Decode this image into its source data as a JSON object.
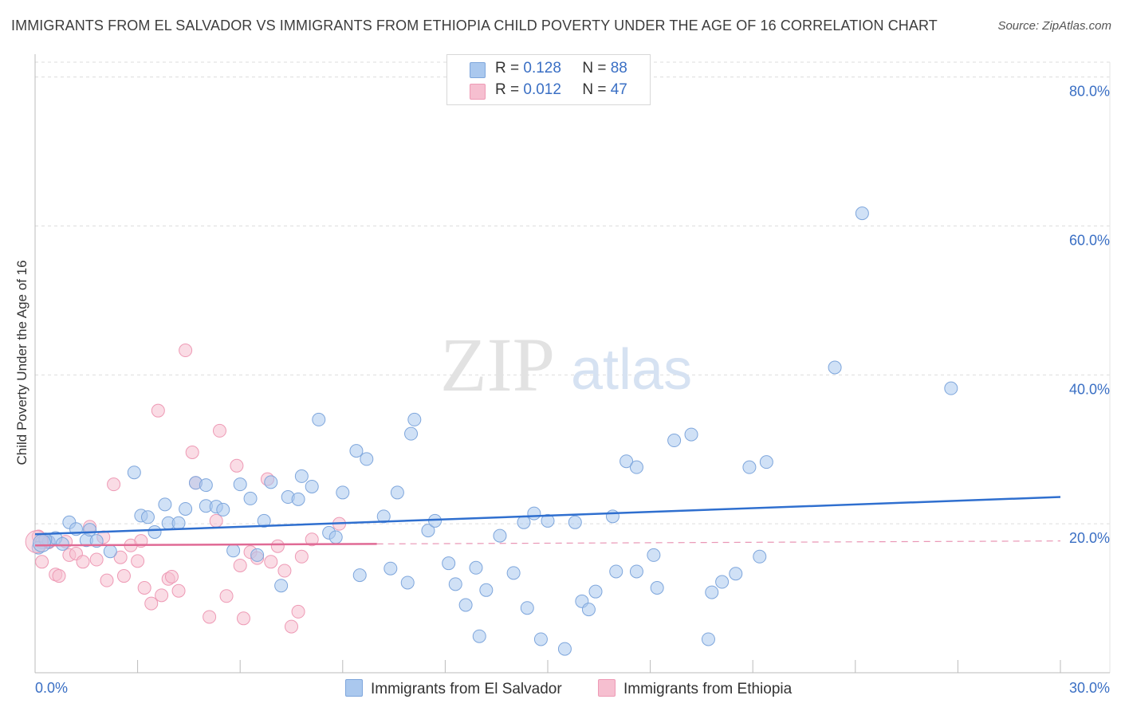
{
  "header": {
    "title": "IMMIGRANTS FROM EL SALVADOR VS IMMIGRANTS FROM ETHIOPIA CHILD POVERTY UNDER THE AGE OF 16 CORRELATION CHART",
    "source": "Source: ZipAtlas.com"
  },
  "watermark": {
    "zip": "ZIP",
    "atlas": "atlas"
  },
  "legend": {
    "rows": [
      {
        "r_label": "R =",
        "r_value": "0.128",
        "n_label": "N =",
        "n_value": "88"
      },
      {
        "r_label": "R =",
        "r_value": "0.012",
        "n_label": "N =",
        "n_value": "47"
      }
    ]
  },
  "bottom_legend": {
    "el_salvador": "Immigrants from El Salvador",
    "ethiopia": "Immigrants from Ethiopia"
  },
  "colors": {
    "el_salvador_fill": "#aac8ee",
    "el_salvador_stroke": "#7ea6dc",
    "el_salvador_line": "#2f6fcf",
    "ethiopia_fill": "#f6bfd0",
    "ethiopia_stroke": "#ee9ab5",
    "ethiopia_line": "#e06a95",
    "grid": "#dddddd",
    "tick_text": "#3a6fc4"
  },
  "chart_data": {
    "type": "scatter",
    "title": "IMMIGRANTS FROM EL SALVADOR VS IMMIGRANTS FROM ETHIOPIA CHILD POVERTY UNDER THE AGE OF 16 CORRELATION CHART",
    "xlabel": "",
    "ylabel": "Child Poverty Under the Age of 16",
    "xlim": [
      0,
      30
    ],
    "ylim": [
      0,
      82
    ],
    "x_tick_labels": [
      "0.0%",
      "30.0%"
    ],
    "y_ticks": [
      20,
      40,
      60,
      80
    ],
    "y_tick_labels": [
      "20.0%",
      "40.0%",
      "60.0%",
      "80.0%"
    ],
    "grid": true,
    "legend_position": "top-center",
    "series": [
      {
        "name": "Immigrants from El Salvador",
        "R": 0.128,
        "N": 88,
        "trend": {
          "x": [
            0,
            30
          ],
          "y": [
            18.6,
            23.6
          ]
        },
        "points": [
          [
            0.2,
            17.5
          ],
          [
            0.4,
            17.6
          ],
          [
            0.6,
            18.1
          ],
          [
            0.8,
            17.3
          ],
          [
            1.0,
            20.2
          ],
          [
            1.2,
            19.3
          ],
          [
            1.5,
            17.8
          ],
          [
            1.6,
            19.2
          ],
          [
            1.8,
            17.7
          ],
          [
            2.2,
            16.3
          ],
          [
            2.9,
            26.9
          ],
          [
            3.1,
            21.1
          ],
          [
            3.3,
            20.9
          ],
          [
            3.5,
            18.9
          ],
          [
            3.8,
            22.6
          ],
          [
            3.9,
            20.1
          ],
          [
            4.2,
            20.1
          ],
          [
            4.4,
            22.0
          ],
          [
            4.7,
            25.5
          ],
          [
            5.0,
            22.4
          ],
          [
            5.0,
            25.2
          ],
          [
            5.3,
            22.3
          ],
          [
            5.5,
            21.9
          ],
          [
            5.8,
            16.4
          ],
          [
            6.0,
            25.3
          ],
          [
            6.3,
            23.4
          ],
          [
            6.5,
            15.8
          ],
          [
            6.7,
            20.4
          ],
          [
            6.9,
            25.6
          ],
          [
            7.2,
            11.7
          ],
          [
            7.4,
            23.6
          ],
          [
            7.7,
            23.3
          ],
          [
            7.8,
            26.4
          ],
          [
            8.1,
            25.0
          ],
          [
            8.3,
            34.0
          ],
          [
            8.6,
            18.8
          ],
          [
            8.8,
            18.2
          ],
          [
            9.0,
            24.2
          ],
          [
            9.4,
            29.8
          ],
          [
            9.5,
            13.1
          ],
          [
            9.7,
            28.7
          ],
          [
            10.2,
            21.0
          ],
          [
            10.4,
            14.0
          ],
          [
            10.6,
            24.2
          ],
          [
            10.9,
            12.1
          ],
          [
            11.0,
            32.1
          ],
          [
            11.1,
            34.0
          ],
          [
            11.5,
            19.1
          ],
          [
            11.7,
            20.4
          ],
          [
            12.1,
            14.7
          ],
          [
            12.3,
            11.9
          ],
          [
            12.6,
            9.1
          ],
          [
            12.9,
            14.1
          ],
          [
            13.0,
            4.9
          ],
          [
            13.2,
            11.1
          ],
          [
            13.6,
            18.4
          ],
          [
            14.0,
            13.4
          ],
          [
            14.3,
            20.2
          ],
          [
            14.4,
            8.7
          ],
          [
            14.6,
            21.4
          ],
          [
            14.8,
            4.5
          ],
          [
            15.0,
            20.4
          ],
          [
            15.5,
            3.2
          ],
          [
            15.8,
            20.2
          ],
          [
            16.0,
            9.6
          ],
          [
            16.2,
            8.5
          ],
          [
            16.4,
            10.9
          ],
          [
            16.9,
            21.0
          ],
          [
            17.0,
            13.6
          ],
          [
            17.3,
            28.4
          ],
          [
            17.6,
            27.6
          ],
          [
            17.6,
            13.6
          ],
          [
            18.1,
            15.8
          ],
          [
            18.2,
            11.4
          ],
          [
            18.7,
            31.2
          ],
          [
            19.2,
            32.0
          ],
          [
            19.7,
            4.5
          ],
          [
            19.8,
            10.8
          ],
          [
            20.1,
            12.2
          ],
          [
            20.5,
            13.3
          ],
          [
            20.9,
            27.6
          ],
          [
            21.2,
            15.6
          ],
          [
            21.4,
            28.3
          ],
          [
            23.4,
            41.0
          ],
          [
            24.2,
            61.7
          ],
          [
            26.8,
            38.2
          ],
          [
            0.1,
            16.8
          ],
          [
            0.3,
            17.9
          ]
        ]
      },
      {
        "name": "Immigrants from Ethiopia",
        "R": 0.012,
        "N": 47,
        "trend": {
          "x": [
            0,
            10
          ],
          "y": [
            17.1,
            17.3
          ]
        },
        "points": [
          [
            0.1,
            18.3
          ],
          [
            0.2,
            14.9
          ],
          [
            0.4,
            17.5
          ],
          [
            0.6,
            13.2
          ],
          [
            0.7,
            13.0
          ],
          [
            0.9,
            17.6
          ],
          [
            1.0,
            15.8
          ],
          [
            1.2,
            16.0
          ],
          [
            1.4,
            14.9
          ],
          [
            1.6,
            19.6
          ],
          [
            1.8,
            15.2
          ],
          [
            2.0,
            18.2
          ],
          [
            2.1,
            12.4
          ],
          [
            2.3,
            25.3
          ],
          [
            2.5,
            15.5
          ],
          [
            2.6,
            13.0
          ],
          [
            2.8,
            17.1
          ],
          [
            3.0,
            15.0
          ],
          [
            3.1,
            17.7
          ],
          [
            3.2,
            11.4
          ],
          [
            3.4,
            9.3
          ],
          [
            3.6,
            35.2
          ],
          [
            3.7,
            10.4
          ],
          [
            3.9,
            12.6
          ],
          [
            4.0,
            12.9
          ],
          [
            4.2,
            11.0
          ],
          [
            4.4,
            43.3
          ],
          [
            4.6,
            29.6
          ],
          [
            4.7,
            25.5
          ],
          [
            5.1,
            7.5
          ],
          [
            5.3,
            20.4
          ],
          [
            5.4,
            32.5
          ],
          [
            5.6,
            10.3
          ],
          [
            5.9,
            27.8
          ],
          [
            6.0,
            14.4
          ],
          [
            6.1,
            7.3
          ],
          [
            6.3,
            16.2
          ],
          [
            6.5,
            15.4
          ],
          [
            6.8,
            26.0
          ],
          [
            6.9,
            14.9
          ],
          [
            7.1,
            17.0
          ],
          [
            7.3,
            13.7
          ],
          [
            7.5,
            6.2
          ],
          [
            7.7,
            8.2
          ],
          [
            7.8,
            15.6
          ],
          [
            8.1,
            17.9
          ],
          [
            8.9,
            20.0
          ]
        ]
      }
    ]
  }
}
